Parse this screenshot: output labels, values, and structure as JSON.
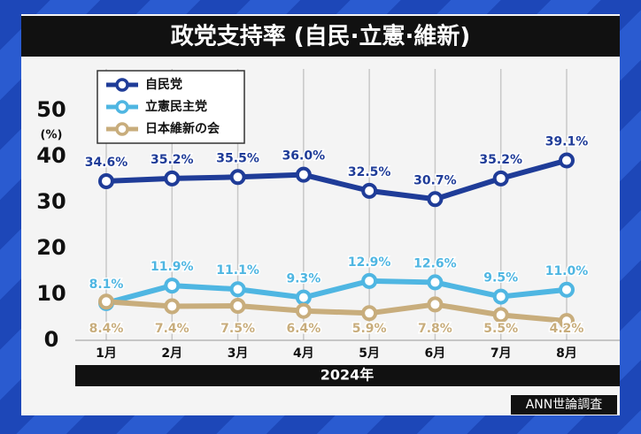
{
  "chart_data": {
    "type": "line",
    "title": "政党支持率 (自民·立憲·維新)",
    "categories": [
      "1月",
      "2月",
      "3月",
      "4月",
      "5月",
      "6月",
      "7月",
      "8月"
    ],
    "xlabel": "2024年",
    "ylabel": "(%)",
    "source": "ANN世論調査",
    "ylim": [
      0,
      59
    ],
    "yticks": [
      0,
      10,
      20,
      30,
      40,
      50
    ],
    "grid": "x",
    "legend": "upper left",
    "series": [
      {
        "name": "自民党",
        "color": "#1f3c98",
        "label_position": "above",
        "values": [
          34.6,
          35.2,
          35.5,
          36.0,
          32.5,
          30.7,
          35.2,
          39.1
        ],
        "value_labels": [
          "34.6%",
          "35.2%",
          "35.5%",
          "36.0%",
          "32.5%",
          "30.7%",
          "35.2%",
          "39.1%"
        ]
      },
      {
        "name": "立憲民主党",
        "color": "#4fb6e2",
        "label_position": "above",
        "values": [
          8.1,
          11.9,
          11.1,
          9.3,
          12.9,
          12.6,
          9.5,
          11.0
        ],
        "value_labels": [
          "8.1%",
          "11.9%",
          "11.1%",
          "9.3%",
          "12.9%",
          "12.6%",
          "9.5%",
          "11.0%"
        ]
      },
      {
        "name": "日本維新の会",
        "color": "#c8ad7c",
        "label_position": "bottom",
        "values": [
          8.4,
          7.4,
          7.5,
          6.4,
          5.9,
          7.8,
          5.5,
          4.2
        ],
        "value_labels": [
          "8.4%",
          "7.4%",
          "7.5%",
          "6.4%",
          "5.9%",
          "7.8%",
          "5.5%",
          "4.2%"
        ]
      }
    ]
  }
}
